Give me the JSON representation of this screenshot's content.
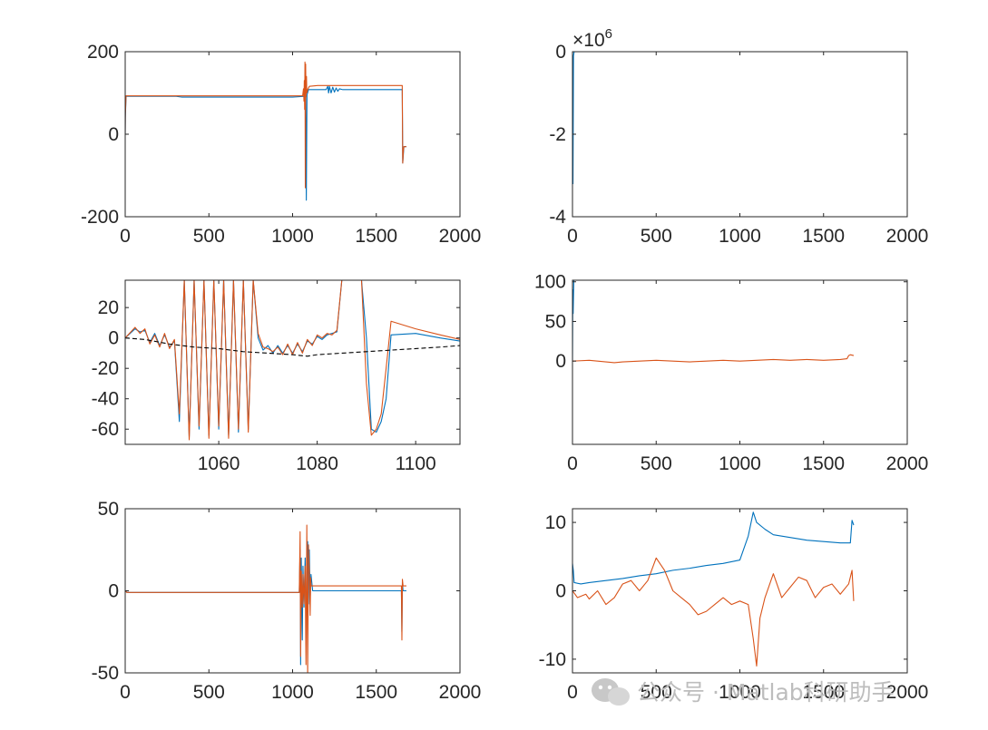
{
  "colors": {
    "blue": "#0072BD",
    "orange": "#D95319",
    "black": "#000000",
    "axis": "#262626"
  },
  "watermark": {
    "text": "公众号 · Matlab科研助手",
    "icon": "wechat-icon"
  },
  "chart_data": [
    {
      "type": "line",
      "title": "",
      "xlabel": "",
      "ylabel": "",
      "xlim": [
        0,
        2000
      ],
      "ylim": [
        -200,
        200
      ],
      "x_ticks": [
        "0",
        "500",
        "1000",
        "1500",
        "2000"
      ],
      "y_ticks": [
        "-200",
        "0",
        "200"
      ],
      "y_tick_values": [
        -200,
        0,
        200
      ],
      "series": [
        {
          "color": "blue",
          "x": [
            0,
            1,
            5,
            10,
            50,
            300,
            340,
            1000,
            1070,
            1078,
            1082,
            1086,
            1095,
            1150,
            1200,
            1210,
            1215,
            1220,
            1230,
            1240,
            1250,
            1260,
            1270,
            1280,
            1300,
            1400,
            1500,
            1550,
            1640,
            1655,
            1658,
            1665,
            1680
          ],
          "y": [
            0,
            40,
            92,
            92,
            92,
            92,
            90,
            90,
            92,
            120,
            -160,
            95,
            108,
            108,
            108,
            116,
            100,
            116,
            100,
            114,
            102,
            112,
            104,
            110,
            108,
            108,
            108,
            108,
            108,
            108,
            -70,
            -30,
            -30
          ]
        },
        {
          "color": "orange",
          "x": [
            0,
            1,
            5,
            10,
            50,
            1000,
            1060,
            1065,
            1068,
            1070,
            1072,
            1074,
            1076,
            1078,
            1080,
            1083,
            1085,
            1090,
            1100,
            1150,
            1300,
            1400,
            1500,
            1600,
            1650,
            1655,
            1658,
            1662,
            1665,
            1680
          ],
          "y": [
            0,
            50,
            93,
            93,
            93,
            93,
            93,
            110,
            80,
            130,
            60,
            175,
            -130,
            170,
            90,
            140,
            100,
            108,
            116,
            118,
            118,
            118,
            118,
            118,
            118,
            118,
            -70,
            -40,
            -30,
            -30
          ]
        }
      ]
    },
    {
      "type": "line",
      "title": "",
      "xlabel": "",
      "ylabel": "",
      "xlim": [
        0,
        2000
      ],
      "ylim": [
        -4000000,
        0
      ],
      "y_exponent_base": "×10",
      "y_exponent": "6",
      "x_ticks": [
        "0",
        "500",
        "1000",
        "1500",
        "2000"
      ],
      "y_ticks": [
        "-4",
        "-2",
        "0"
      ],
      "y_tick_values": [
        -4000000,
        -2000000,
        0
      ],
      "series": [
        {
          "color": "blue",
          "x": [
            0,
            3,
            6,
            10,
            50,
            1680
          ],
          "y": [
            0,
            -3200000,
            -100000,
            0,
            0,
            0
          ]
        },
        {
          "color": "orange",
          "x": [
            0,
            10,
            1680
          ],
          "y": [
            0,
            0,
            0
          ]
        }
      ]
    },
    {
      "type": "line",
      "title": "",
      "xlabel": "",
      "ylabel": "",
      "xlim": [
        1041,
        1109
      ],
      "ylim": [
        -70,
        38
      ],
      "x_ticks": [
        "1060",
        "1080",
        "1100"
      ],
      "x_tick_values": [
        1060,
        1080,
        1100
      ],
      "y_ticks": [
        "-60",
        "-40",
        "-20",
        "0",
        "20"
      ],
      "y_tick_values": [
        -60,
        -40,
        -20,
        0,
        20
      ],
      "series": [
        {
          "color": "blue",
          "x": [
            1041,
            1043,
            1044,
            1045,
            1046,
            1047,
            1048,
            1049,
            1050,
            1051,
            1052,
            1053,
            1054,
            1055,
            1056,
            1057,
            1058,
            1059,
            1060,
            1061,
            1062,
            1063,
            1064,
            1065,
            1066,
            1067,
            1068,
            1069,
            1070,
            1071,
            1072,
            1073,
            1074,
            1075,
            1076,
            1077,
            1078,
            1079,
            1080,
            1081,
            1082,
            1083,
            1084,
            1085,
            1086,
            1087,
            1088,
            1089,
            1090,
            1091,
            1092,
            1093,
            1094,
            1095,
            1100,
            1105,
            1109
          ],
          "y": [
            0,
            6,
            4,
            5,
            -3,
            3,
            -5,
            2,
            -6,
            -2,
            -55,
            38,
            -65,
            38,
            -60,
            38,
            -64,
            38,
            -60,
            38,
            -64,
            38,
            -62,
            38,
            -60,
            38,
            0,
            -8,
            -5,
            -10,
            -5,
            -10,
            -5,
            -10,
            -4,
            -9,
            -2,
            -4,
            1,
            -1,
            2,
            3,
            4,
            38,
            38,
            38,
            38,
            38,
            0,
            -60,
            -62,
            -55,
            -40,
            2,
            3,
            0,
            -2
          ]
        },
        {
          "color": "orange",
          "x": [
            1041,
            1043,
            1044,
            1045,
            1046,
            1047,
            1048,
            1049,
            1050,
            1051,
            1052,
            1053,
            1054,
            1055,
            1056,
            1057,
            1058,
            1059,
            1060,
            1061,
            1062,
            1063,
            1064,
            1065,
            1066,
            1067,
            1068,
            1069,
            1070,
            1071,
            1072,
            1073,
            1074,
            1075,
            1076,
            1077,
            1078,
            1079,
            1080,
            1081,
            1082,
            1083,
            1084,
            1085,
            1086,
            1087,
            1088,
            1089,
            1090,
            1091,
            1092,
            1093,
            1094,
            1095,
            1100,
            1105,
            1109
          ],
          "y": [
            0,
            7,
            3,
            6,
            -4,
            2,
            -6,
            3,
            -7,
            -1,
            -50,
            38,
            -67,
            38,
            -58,
            38,
            -66,
            38,
            -58,
            38,
            -66,
            38,
            -60,
            38,
            -62,
            38,
            3,
            -6,
            -7,
            -9,
            -6,
            -11,
            -4,
            -11,
            -3,
            -10,
            -1,
            -5,
            2,
            0,
            3,
            2,
            5,
            38,
            38,
            38,
            38,
            38,
            -30,
            -64,
            -60,
            -50,
            -20,
            11,
            6,
            2,
            -1
          ]
        },
        {
          "color": "black",
          "dashed": true,
          "x": [
            1041,
            1045,
            1050,
            1055,
            1060,
            1065,
            1070,
            1075,
            1078,
            1080,
            1085,
            1090,
            1095,
            1100,
            1105,
            1109
          ],
          "y": [
            0,
            -1,
            -4,
            -6,
            -7,
            -9,
            -10,
            -11,
            -12,
            -11,
            -10,
            -9,
            -8,
            -7,
            -6,
            -5
          ]
        }
      ]
    },
    {
      "type": "line",
      "title": "",
      "xlabel": "",
      "ylabel": "",
      "xlim": [
        0,
        2000
      ],
      "ylim": [
        -105,
        102
      ],
      "x_ticks": [
        "0",
        "500",
        "1000",
        "1500",
        "2000"
      ],
      "y_ticks": [
        "0",
        "50",
        "100"
      ],
      "y_tick_values": [
        0,
        50,
        100
      ],
      "series": [
        {
          "color": "blue",
          "x": [
            0,
            2,
            4,
            8,
            50,
            1690
          ],
          "y": [
            0,
            90,
            60,
            102,
            102,
            102
          ]
        },
        {
          "color": "orange",
          "x": [
            0,
            100,
            150,
            200,
            250,
            300,
            400,
            500,
            600,
            700,
            800,
            900,
            1000,
            1100,
            1200,
            1300,
            1400,
            1500,
            1600,
            1640,
            1650,
            1660,
            1680
          ],
          "y": [
            0,
            1,
            0,
            -1,
            -2,
            -1,
            0,
            1,
            0,
            -1,
            0,
            1,
            0,
            1,
            2,
            1,
            2,
            1,
            2,
            3,
            7,
            8,
            7
          ]
        }
      ]
    },
    {
      "type": "line",
      "title": "",
      "xlabel": "",
      "ylabel": "",
      "xlim": [
        0,
        2000
      ],
      "ylim": [
        -50,
        50
      ],
      "x_ticks": [
        "0",
        "500",
        "1000",
        "1500",
        "2000"
      ],
      "y_ticks": [
        "-50",
        "0",
        "50"
      ],
      "y_tick_values": [
        -50,
        0,
        50
      ],
      "series": [
        {
          "color": "blue",
          "x": [
            0,
            10,
            1000,
            1040,
            1045,
            1048,
            1052,
            1058,
            1062,
            1068,
            1075,
            1080,
            1090,
            1095,
            1100,
            1105,
            1110,
            1120,
            1650,
            1653,
            1656,
            1660,
            1680
          ],
          "y": [
            0,
            -1,
            -1,
            -1,
            25,
            -45,
            20,
            -30,
            15,
            -10,
            20,
            -20,
            30,
            -8,
            25,
            -5,
            10,
            0,
            0,
            -25,
            5,
            0,
            0
          ]
        },
        {
          "color": "orange",
          "x": [
            0,
            10,
            1000,
            1040,
            1045,
            1048,
            1052,
            1058,
            1062,
            1068,
            1075,
            1080,
            1085,
            1090,
            1095,
            1100,
            1105,
            1108,
            1110,
            1120,
            1200,
            1400,
            1640,
            1650,
            1653,
            1656,
            1660,
            1680
          ],
          "y": [
            0,
            -1,
            -1,
            -1,
            36,
            -40,
            12,
            -10,
            10,
            -8,
            15,
            -45,
            40,
            -52,
            28,
            12,
            -15,
            8,
            3,
            3,
            3,
            3,
            3,
            3,
            -30,
            7,
            3,
            3
          ]
        }
      ]
    },
    {
      "type": "line",
      "title": "",
      "xlabel": "",
      "ylabel": "",
      "xlim": [
        0,
        2000
      ],
      "ylim": [
        -12,
        12
      ],
      "x_ticks": [
        "0",
        "500",
        "1000",
        "1500",
        "2000"
      ],
      "y_ticks": [
        "-10",
        "0",
        "10"
      ],
      "y_tick_values": [
        -10,
        0,
        10
      ],
      "series": [
        {
          "color": "blue",
          "x": [
            0,
            5,
            10,
            50,
            100,
            200,
            300,
            400,
            500,
            600,
            700,
            800,
            900,
            1000,
            1050,
            1080,
            1100,
            1150,
            1200,
            1300,
            1400,
            1500,
            1600,
            1660,
            1670,
            1680
          ],
          "y": [
            4,
            3,
            1.2,
            1,
            1.2,
            1.5,
            1.8,
            2.2,
            2.5,
            3,
            3.3,
            3.7,
            4,
            4.5,
            8,
            11.5,
            10,
            9,
            8.2,
            7.8,
            7.4,
            7.2,
            7,
            7,
            10.3,
            9.6
          ]
        },
        {
          "color": "orange",
          "x": [
            0,
            30,
            80,
            100,
            150,
            200,
            250,
            300,
            350,
            400,
            450,
            500,
            550,
            600,
            650,
            700,
            750,
            800,
            850,
            900,
            950,
            1000,
            1050,
            1080,
            1100,
            1120,
            1150,
            1200,
            1250,
            1300,
            1350,
            1400,
            1450,
            1500,
            1550,
            1600,
            1650,
            1670,
            1680
          ],
          "y": [
            0,
            -1,
            -0.5,
            -1.2,
            0,
            -2,
            -1,
            1,
            1.5,
            0,
            1.5,
            4.8,
            3,
            0,
            -1,
            -2,
            -3.5,
            -3,
            -2,
            -1,
            -2,
            -1.5,
            -2,
            -7,
            -11,
            -4,
            -1,
            2.5,
            -1,
            0.5,
            2,
            1.5,
            -1,
            0.5,
            1,
            -0.5,
            1,
            3,
            -1.5
          ]
        }
      ]
    }
  ]
}
